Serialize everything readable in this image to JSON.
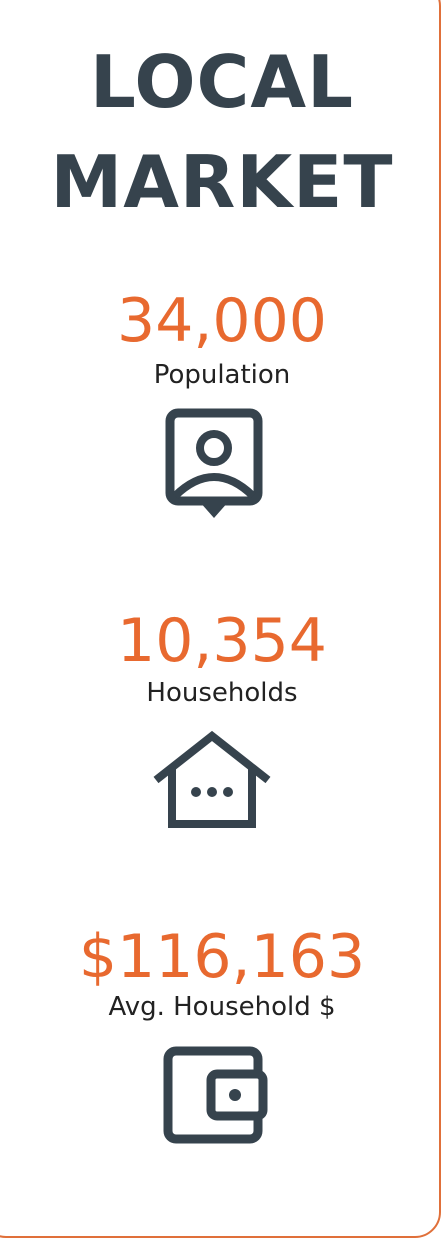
{
  "title": [
    "LOCAL",
    "MARKET"
  ],
  "stats": [
    {
      "value": "34,000",
      "label": "Population"
    },
    {
      "value": "10,354",
      "label": "Households"
    },
    {
      "value": "$116,163",
      "label": "Avg. Household $"
    }
  ]
}
